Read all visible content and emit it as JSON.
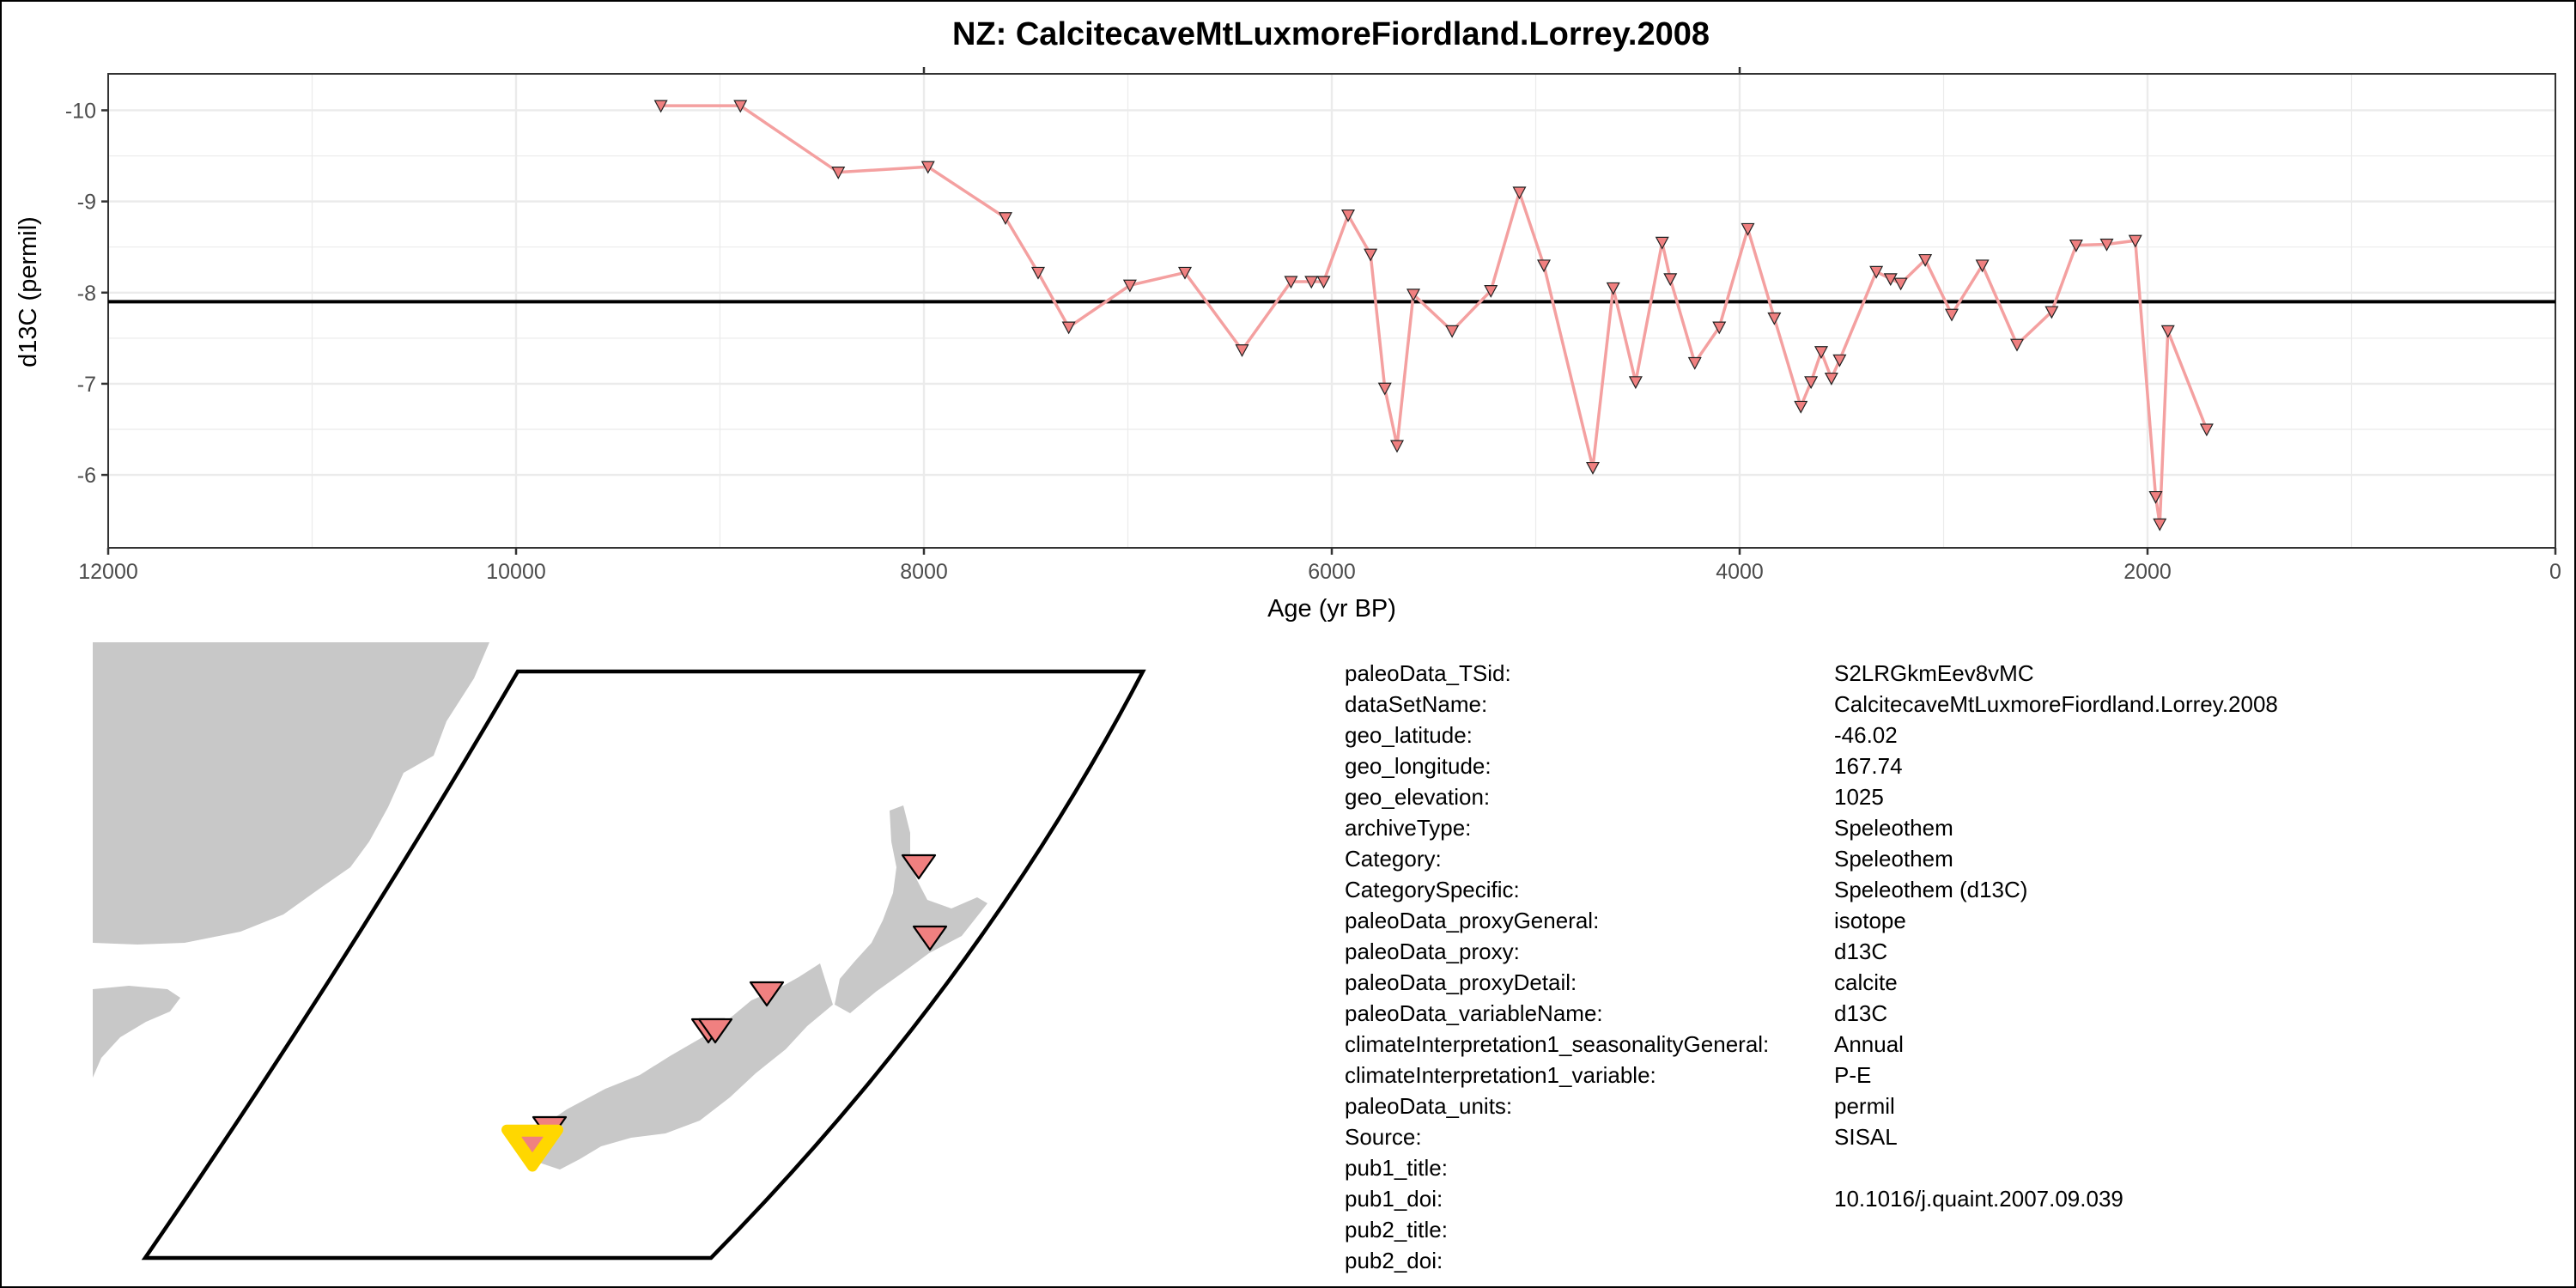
{
  "chart_data": {
    "type": "line",
    "title": "NZ: CalcitecaveMtLuxmoreFiordland.Lorrey.2008",
    "xlabel": "Age (yr BP)",
    "ylabel": "d13C (permil)",
    "xlim": [
      12000,
      0
    ],
    "ylim": [
      -10.4,
      -5.2
    ],
    "y_reversed": true,
    "x_reversed": true,
    "x_ticks": [
      12000,
      10000,
      8000,
      6000,
      4000,
      2000,
      0
    ],
    "y_ticks": [
      -10,
      -9,
      -8,
      -7,
      -6
    ],
    "x_tick_labels": [
      "12000",
      "10000",
      "8000",
      "6000",
      "4000",
      "2000",
      "0"
    ],
    "y_tick_labels": [
      "-10",
      "-9",
      "-8",
      "-7",
      "-6"
    ],
    "grid": true,
    "reference_line_y": -7.9,
    "series": [
      {
        "color": "#f4a0a0",
        "marker": "triangle-down",
        "marker_fill": "#f08080",
        "x": [
          9290,
          8900,
          8420,
          7980,
          7600,
          7440,
          7290,
          6990,
          6720,
          6440,
          6200,
          6100,
          6040,
          5920,
          5810,
          5740,
          5680,
          5600,
          5410,
          5220,
          5080,
          4960,
          4720,
          4620,
          4510,
          4380,
          4340,
          4220,
          4100,
          3960,
          3830,
          3700,
          3650,
          3600,
          3550,
          3510,
          3330,
          3260,
          3210,
          3090,
          2960,
          2810,
          2640,
          2470,
          2350,
          2200,
          2060,
          1960,
          1940,
          1900,
          1710
        ],
        "y": [
          -10.05,
          -10.05,
          -9.32,
          -9.38,
          -8.82,
          -8.22,
          -7.62,
          -8.08,
          -8.22,
          -7.37,
          -8.12,
          -8.12,
          -8.12,
          -8.85,
          -8.42,
          -6.95,
          -6.32,
          -7.98,
          -7.58,
          -8.02,
          -9.1,
          -8.3,
          -6.08,
          -8.05,
          -7.02,
          -8.55,
          -8.15,
          -7.23,
          -7.62,
          -8.7,
          -7.72,
          -6.75,
          -7.02,
          -7.35,
          -7.06,
          -7.26,
          -8.23,
          -8.15,
          -8.1,
          -8.36,
          -7.76,
          -8.3,
          -7.43,
          -7.79,
          -8.52,
          -8.53,
          -8.57,
          -5.76,
          -5.46,
          -7.58,
          -6.5
        ]
      }
    ]
  },
  "map": {
    "land_color": "#c8c8c8",
    "marker_fill": "#f08080",
    "highlight_color": "#ffd700",
    "frame_color": "#000000"
  },
  "info": {
    "rows": [
      {
        "key": "paleoData_TSid:",
        "value": "S2LRGkmEev8vMC"
      },
      {
        "key": "dataSetName:",
        "value": "CalcitecaveMtLuxmoreFiordland.Lorrey.2008"
      },
      {
        "key": "geo_latitude:",
        "value": "-46.02"
      },
      {
        "key": "geo_longitude:",
        "value": "167.74"
      },
      {
        "key": "geo_elevation:",
        "value": "1025"
      },
      {
        "key": "archiveType:",
        "value": "Speleothem"
      },
      {
        "key": "Category:",
        "value": "Speleothem"
      },
      {
        "key": "CategorySpecific:",
        "value": "Speleothem (d13C)"
      },
      {
        "key": "paleoData_proxyGeneral:",
        "value": "isotope"
      },
      {
        "key": "paleoData_proxy:",
        "value": "d13C"
      },
      {
        "key": "paleoData_proxyDetail:",
        "value": "calcite"
      },
      {
        "key": "paleoData_variableName:",
        "value": "d13C"
      },
      {
        "key": "climateInterpretation1_seasonalityGeneral:",
        "value": "Annual"
      },
      {
        "key": "climateInterpretation1_variable:",
        "value": "P-E"
      },
      {
        "key": "paleoData_units:",
        "value": "permil"
      },
      {
        "key": "Source:",
        "value": "SISAL"
      },
      {
        "key": "pub1_title:",
        "value": ""
      },
      {
        "key": "pub1_doi:",
        "value": "10.1016/j.quaint.2007.09.039"
      },
      {
        "key": "pub2_title:",
        "value": ""
      },
      {
        "key": "pub2_doi:",
        "value": ""
      }
    ]
  }
}
